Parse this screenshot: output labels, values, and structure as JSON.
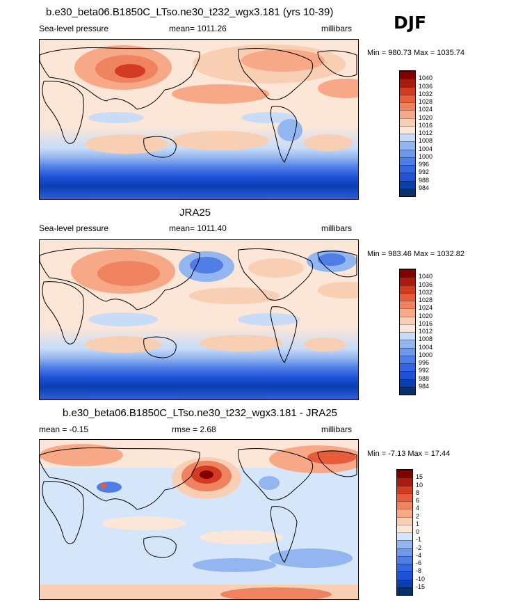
{
  "season": "DJF",
  "panels": [
    {
      "title": "b.e30_beta06.B1850C_LTso.ne30_t232_wgx3.181 (yrs 10-39)",
      "left_label": "Sea-level pressure",
      "center_label": "mean= 1011.26",
      "right_label": "millibars",
      "minmax": "Min = 980.73 Max = 1035.74",
      "colorbar": {
        "labels": [
          "984",
          "988",
          "992",
          "996",
          "1000",
          "1004",
          "1008",
          "1012",
          "1016",
          "1020",
          "1024",
          "1028",
          "1032",
          "1036",
          "1040"
        ],
        "colors": [
          "#08306b",
          "#0a3fb0",
          "#1f52d6",
          "#3366e0",
          "#4f7fe6",
          "#6f98ea",
          "#93b5f0",
          "#c8dcf8",
          "#fbe6d8",
          "#f9cfb4",
          "#f6a887",
          "#f0835f",
          "#e65d3c",
          "#d23b22",
          "#a81c10",
          "#800000"
        ]
      }
    },
    {
      "title": "JRA25",
      "left_label": "Sea-level pressure",
      "center_label": "mean= 1011.40",
      "right_label": "millibars",
      "minmax": "Min = 983.46 Max = 1032.82",
      "colorbar": {
        "labels": [
          "984",
          "988",
          "992",
          "996",
          "1000",
          "1004",
          "1008",
          "1012",
          "1016",
          "1020",
          "1024",
          "1028",
          "1032",
          "1036",
          "1040"
        ],
        "colors": [
          "#08306b",
          "#0a3fb0",
          "#1f52d6",
          "#3366e0",
          "#4f7fe6",
          "#6f98ea",
          "#93b5f0",
          "#c8dcf8",
          "#fbe6d8",
          "#f9cfb4",
          "#f6a887",
          "#f0835f",
          "#e65d3c",
          "#d23b22",
          "#a81c10",
          "#800000"
        ]
      }
    },
    {
      "title": "b.e30_beta06.B1850C_LTso.ne30_t232_wgx3.181 - JRA25",
      "left_label": "mean =  -0.15",
      "center_label": "rmse =   2.68",
      "right_label": "millibars",
      "minmax": "Min =  -7.13 Max =  17.44",
      "colorbar": {
        "labels": [
          "-15",
          "-10",
          "-8",
          "-6",
          "-4",
          "-2",
          "-1",
          "0",
          "1",
          "2",
          "4",
          "6",
          "8",
          "10",
          "15"
        ],
        "colors": [
          "#08306b",
          "#0a3fb0",
          "#1f52d6",
          "#3366e0",
          "#4f7fe6",
          "#6f98ea",
          "#93b5f0",
          "#d6e6fa",
          "#fbe6d8",
          "#f9cfb4",
          "#f6a887",
          "#f0835f",
          "#e65d3c",
          "#d23b22",
          "#a81c10",
          "#800000"
        ]
      }
    }
  ]
}
